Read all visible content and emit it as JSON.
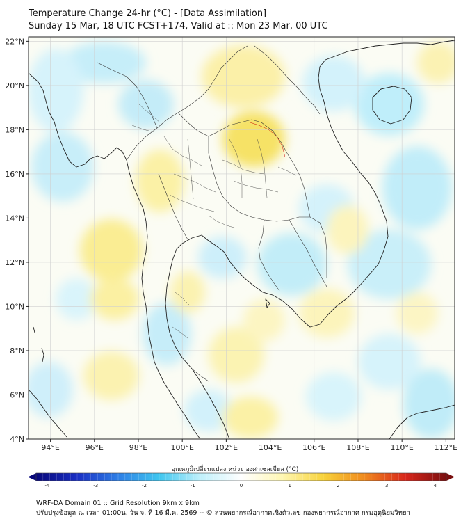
{
  "title": {
    "line1": "Temperature Change 24-hr (°C) - [Data Assimilation]",
    "line2": "Sunday 15 Mar, 18 UTC FCST+174, Valid at :: Mon 23 Mar, 00 UTC"
  },
  "map": {
    "lon_range": [
      93,
      112.4
    ],
    "lat_range": [
      4,
      22.2
    ],
    "lat_ticks": [
      {
        "value": 22,
        "label": "22°N"
      },
      {
        "value": 20,
        "label": "20°N"
      },
      {
        "value": 18,
        "label": "18°N"
      },
      {
        "value": 16,
        "label": "16°N"
      },
      {
        "value": 14,
        "label": "14°N"
      },
      {
        "value": 12,
        "label": "12°N"
      },
      {
        "value": 10,
        "label": "10°N"
      },
      {
        "value": 8,
        "label": "8°N"
      },
      {
        "value": 6,
        "label": "6°N"
      },
      {
        "value": 4,
        "label": "4°N"
      }
    ],
    "lon_ticks": [
      {
        "value": 94,
        "label": "94°E"
      },
      {
        "value": 96,
        "label": "96°E"
      },
      {
        "value": 98,
        "label": "98°E"
      },
      {
        "value": 100,
        "label": "100°E"
      },
      {
        "value": 102,
        "label": "102°E"
      },
      {
        "value": 104,
        "label": "104°E"
      },
      {
        "value": 106,
        "label": "106°E"
      },
      {
        "value": 108,
        "label": "108°E"
      },
      {
        "value": 110,
        "label": "110°E"
      },
      {
        "value": 112,
        "label": "112°E"
      }
    ],
    "field_colors": {
      "cyan": "#bfeefa",
      "light_cyan": "#ddf6fc",
      "yellow": "#fbf3b0",
      "deep_yellow": "#f7e46a",
      "land_line": "#222222",
      "grid": "#cccccc"
    }
  },
  "colorbar": {
    "title": "อุณหภูมิเปลี่ยนแปลง หน่วย องศาเซลเซียส (°C)",
    "min": -4,
    "max": 4,
    "tick_labels": [
      "-4",
      "-3",
      "-2",
      "-1",
      "0",
      "1",
      "2",
      "3",
      "4"
    ],
    "colors": [
      "#08087a",
      "#1a2fc4",
      "#2e7fe6",
      "#3fc6ef",
      "#bff0fb",
      "#ffffff",
      "#fff7b3",
      "#f7d23a",
      "#f08a1e",
      "#d8261b",
      "#7a0f0f"
    ]
  },
  "footer": {
    "line1": "WRF-DA Domain 01 :: Grid Resolution 9km x 9km",
    "line2": "ปรับปรุงข้อมูล ณ เวลา 01:00น. วัน จ. ที่ 16 มี.ค. 2569 -- © ส่วนพยากรณ์อากาศเชิงตัวเลข กองพยากรณ์อากาศ กรมอุตุนิยมวิทยา"
  }
}
